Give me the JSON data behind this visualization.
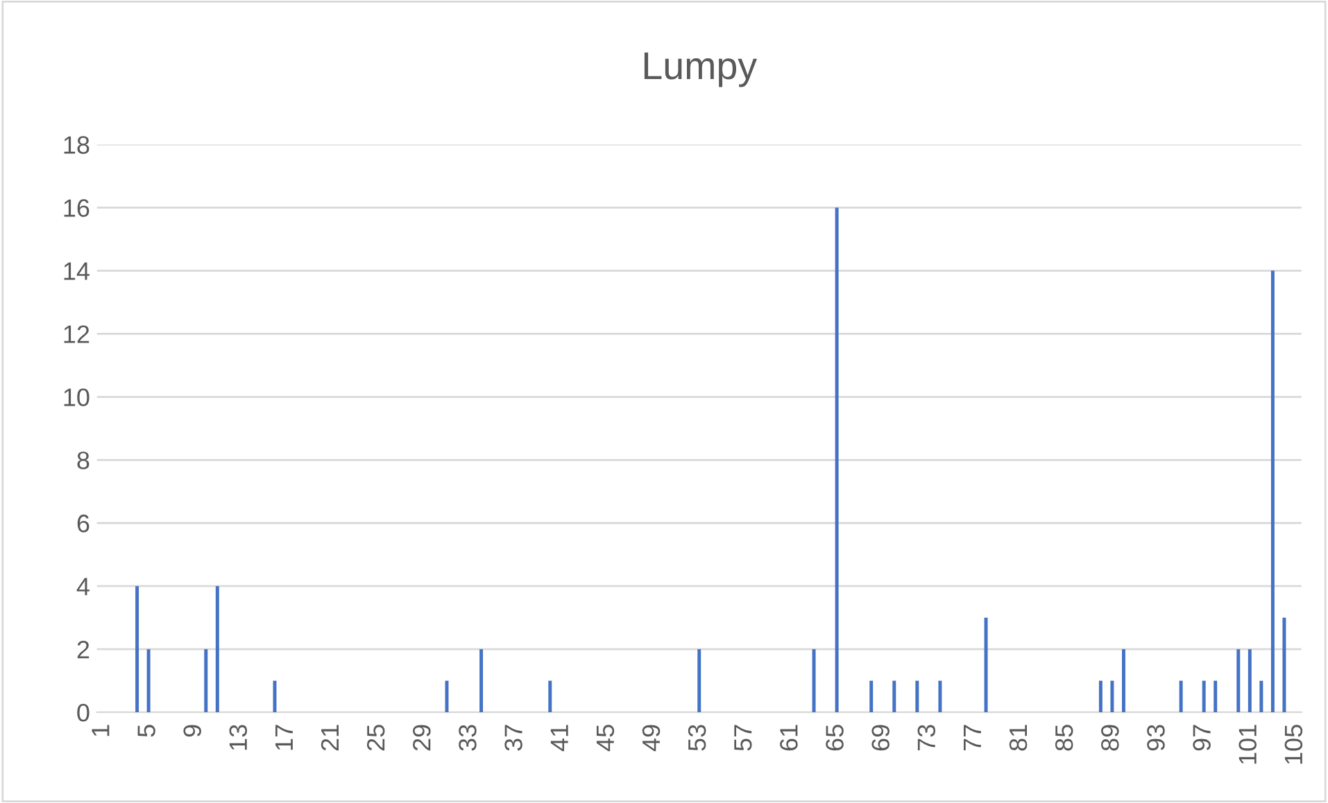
{
  "chart_data": {
    "type": "bar",
    "title": "Lumpy",
    "categories": [
      "1",
      null,
      null,
      null,
      "5",
      null,
      null,
      null,
      "9",
      null,
      null,
      null,
      "13",
      null,
      null,
      null,
      "17",
      null,
      null,
      null,
      "21",
      null,
      null,
      null,
      "25",
      null,
      null,
      null,
      "29",
      null,
      null,
      null,
      "33",
      null,
      null,
      null,
      "37",
      null,
      null,
      null,
      "41",
      null,
      null,
      null,
      "45",
      null,
      null,
      null,
      "49",
      null,
      null,
      null,
      "53",
      null,
      null,
      null,
      "57",
      null,
      null,
      null,
      "61",
      null,
      null,
      null,
      "65",
      null,
      null,
      null,
      "69",
      null,
      null,
      null,
      "73",
      null,
      null,
      null,
      "77",
      null,
      null,
      null,
      "81",
      null,
      null,
      null,
      "85",
      null,
      null,
      null,
      "89",
      null,
      null,
      null,
      "93",
      null,
      null,
      null,
      "97",
      null,
      null,
      null,
      "101",
      null,
      null,
      null,
      "105"
    ],
    "values": [
      0,
      0,
      0,
      4,
      2,
      0,
      0,
      0,
      0,
      2,
      4,
      0,
      0,
      0,
      0,
      1,
      0,
      0,
      0,
      0,
      0,
      0,
      0,
      0,
      0,
      0,
      0,
      0,
      0,
      0,
      1,
      0,
      0,
      2,
      0,
      0,
      0,
      0,
      0,
      1,
      0,
      0,
      0,
      0,
      0,
      0,
      0,
      0,
      0,
      0,
      0,
      0,
      2,
      0,
      0,
      0,
      0,
      0,
      0,
      0,
      0,
      0,
      2,
      0,
      16,
      0,
      0,
      1,
      0,
      1,
      0,
      1,
      0,
      1,
      0,
      0,
      0,
      3,
      0,
      0,
      0,
      0,
      0,
      0,
      0,
      0,
      0,
      1,
      1,
      2,
      0,
      0,
      0,
      0,
      1,
      0,
      1,
      1,
      0,
      2,
      2,
      1,
      14,
      3,
      0
    ],
    "color": "#4472c4",
    "ylim": [
      0,
      18
    ],
    "yticks": [
      0,
      2,
      4,
      6,
      8,
      10,
      12,
      14,
      16,
      18
    ],
    "grid": "y",
    "legend": false
  }
}
